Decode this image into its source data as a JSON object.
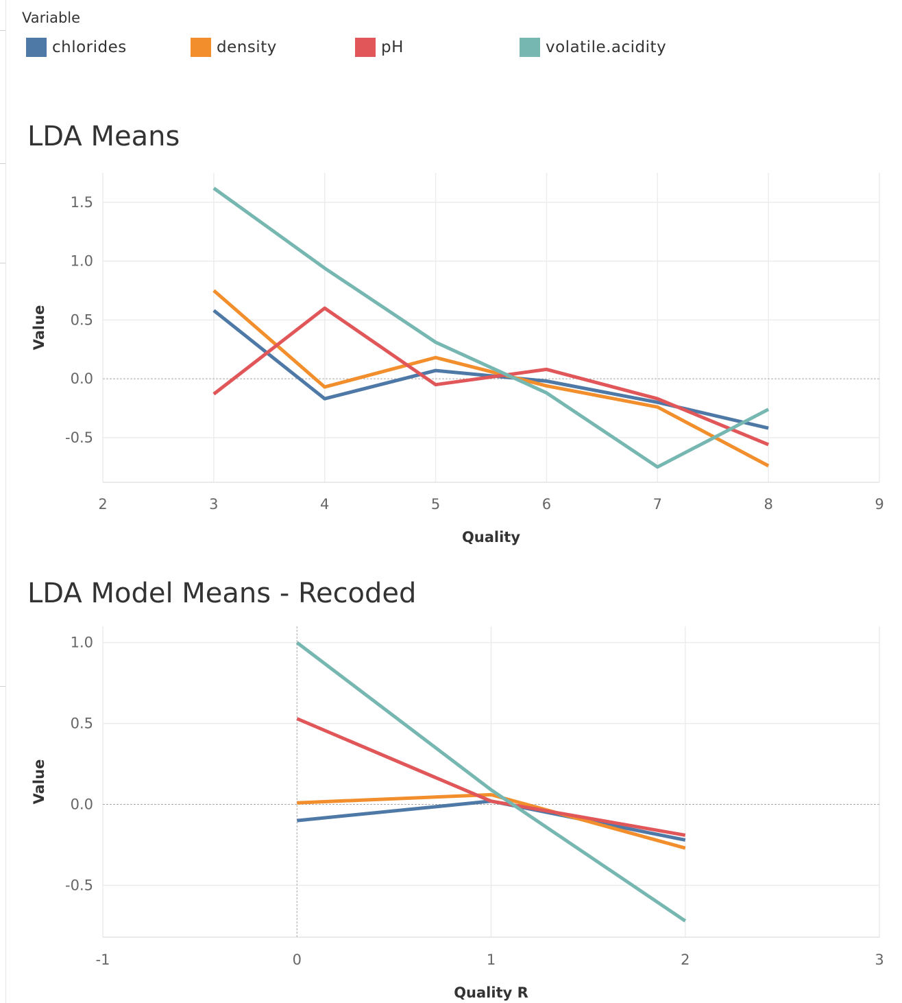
{
  "legend": {
    "title": "Variable",
    "items": [
      {
        "label": "chlorides",
        "color": "#4e79a7"
      },
      {
        "label": "density",
        "color": "#f28e2b"
      },
      {
        "label": "pH",
        "color": "#e15759"
      },
      {
        "label": "volatile.acidity",
        "color": "#76b7b2"
      }
    ]
  },
  "chart_data": [
    {
      "type": "line",
      "title": "LDA Means",
      "xlabel": "Quality",
      "ylabel": "Value",
      "xlim": [
        2,
        9
      ],
      "ylim": [
        -0.88,
        1.75
      ],
      "xticks": [
        2,
        3,
        4,
        5,
        6,
        7,
        8,
        9
      ],
      "yticks": [
        -0.5,
        0.0,
        0.5,
        1.0,
        1.5
      ],
      "x": [
        3,
        4,
        5,
        6,
        7,
        8
      ],
      "grid": true,
      "series": [
        {
          "name": "chlorides",
          "color": "#4e79a7",
          "values": [
            0.58,
            -0.17,
            0.07,
            -0.02,
            -0.2,
            -0.42
          ]
        },
        {
          "name": "density",
          "color": "#f28e2b",
          "values": [
            0.75,
            -0.07,
            0.18,
            -0.06,
            -0.24,
            -0.74
          ]
        },
        {
          "name": "pH",
          "color": "#e15759",
          "values": [
            -0.13,
            0.6,
            -0.05,
            0.08,
            -0.17,
            -0.56
          ]
        },
        {
          "name": "volatile.acidity",
          "color": "#76b7b2",
          "values": [
            1.62,
            0.94,
            0.31,
            -0.12,
            -0.75,
            -0.26
          ]
        }
      ]
    },
    {
      "type": "line",
      "title": "LDA Model Means - Recoded",
      "xlabel": "Quality R",
      "ylabel": "Value",
      "xlim": [
        -1,
        3
      ],
      "ylim": [
        -0.82,
        1.1
      ],
      "xticks": [
        -1,
        0,
        1,
        2,
        3
      ],
      "yticks": [
        -0.5,
        0.0,
        0.5,
        1.0
      ],
      "x": [
        0,
        1,
        2
      ],
      "grid": true,
      "series": [
        {
          "name": "chlorides",
          "color": "#4e79a7",
          "values": [
            -0.1,
            0.02,
            -0.22
          ]
        },
        {
          "name": "density",
          "color": "#f28e2b",
          "values": [
            0.01,
            0.06,
            -0.27
          ]
        },
        {
          "name": "pH",
          "color": "#e15759",
          "values": [
            0.53,
            0.02,
            -0.19
          ]
        },
        {
          "name": "volatile.acidity",
          "color": "#76b7b2",
          "values": [
            1.0,
            0.09,
            -0.72
          ]
        }
      ]
    }
  ]
}
